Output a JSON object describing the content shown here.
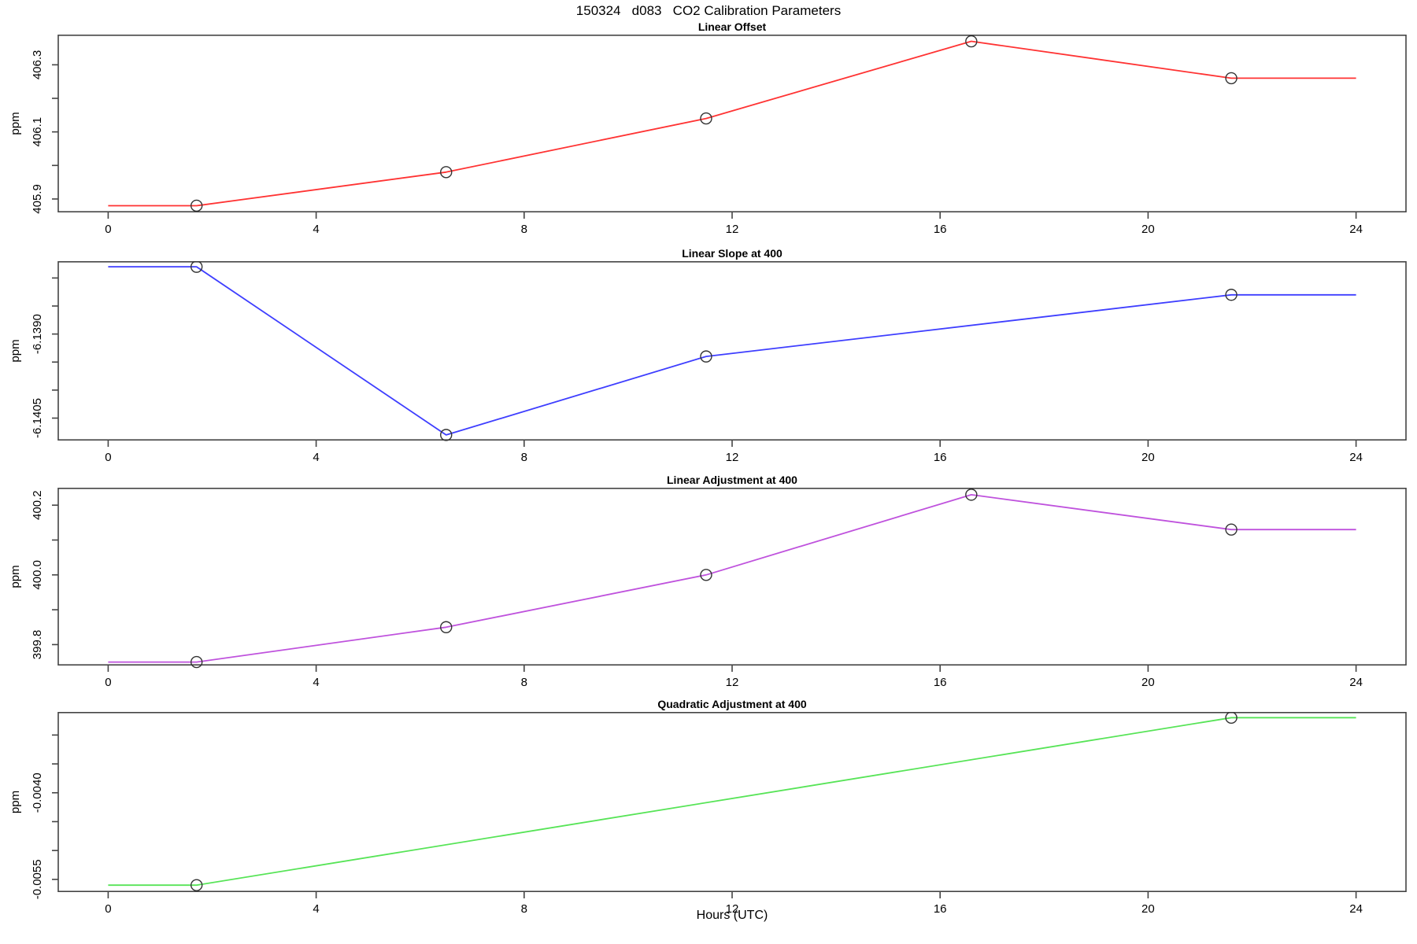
{
  "figure": {
    "title": "150324   d083   CO2 Calibration Parameters",
    "xlabel": "Hours (UTC)"
  },
  "chart_data": [
    {
      "type": "line",
      "title": "Linear Offset",
      "ylabel": "ppm",
      "color": "#ff3333",
      "marker": "open-circle",
      "x": [
        1.7,
        6.5,
        11.5,
        16.6,
        21.6
      ],
      "y": [
        405.88,
        405.98,
        406.14,
        406.37,
        406.26
      ],
      "extrapolated_line": {
        "x": [
          0,
          1.7,
          6.5,
          11.5,
          16.6,
          21.6,
          24
        ],
        "y": [
          405.88,
          405.88,
          405.98,
          406.14,
          406.37,
          406.26,
          406.26
        ]
      },
      "xlim": [
        -0.96,
        24.96
      ],
      "ylim": [
        405.86,
        406.39
      ],
      "xticks": [
        0,
        4,
        8,
        12,
        16,
        20,
        24
      ],
      "yticks": [
        {
          "v": 405.9,
          "label": "405.9"
        },
        {
          "v": 406.0,
          "label": ""
        },
        {
          "v": 406.1,
          "label": "406.1"
        },
        {
          "v": 406.2,
          "label": ""
        },
        {
          "v": 406.3,
          "label": "406.3"
        }
      ],
      "grid": false
    },
    {
      "type": "line",
      "title": "Linear Slope at 400",
      "ylabel": "ppm",
      "color": "#3e3eff",
      "marker": "open-circle",
      "x": [
        1.7,
        6.5,
        11.5,
        21.6
      ],
      "y": [
        -6.1378,
        -6.1408,
        -6.1394,
        -6.1383
      ],
      "extrapolated_line": {
        "x": [
          0,
          1.7,
          6.5,
          11.5,
          21.6,
          24
        ],
        "y": [
          -6.1378,
          -6.1378,
          -6.1408,
          -6.1394,
          -6.1383,
          -6.1383
        ]
      },
      "xlim": [
        -0.96,
        24.96
      ],
      "ylim": [
        -6.1409,
        -6.1377
      ],
      "xticks": [
        0,
        4,
        8,
        12,
        16,
        20,
        24
      ],
      "yticks": [
        {
          "v": -6.1405,
          "label": "-6.1405"
        },
        {
          "v": -6.14,
          "label": ""
        },
        {
          "v": -6.1395,
          "label": ""
        },
        {
          "v": -6.139,
          "label": "-6.1390"
        },
        {
          "v": -6.1385,
          "label": ""
        },
        {
          "v": -6.138,
          "label": ""
        }
      ],
      "grid": false
    },
    {
      "type": "line",
      "title": "Linear Adjustment at 400",
      "ylabel": "ppm",
      "color": "#bf52dd",
      "marker": "open-circle",
      "x": [
        1.7,
        6.5,
        11.5,
        16.6,
        21.6
      ],
      "y": [
        399.75,
        399.85,
        400.0,
        400.23,
        400.13
      ],
      "extrapolated_line": {
        "x": [
          0,
          1.7,
          6.5,
          11.5,
          16.6,
          21.6,
          24
        ],
        "y": [
          399.75,
          399.75,
          399.85,
          400.0,
          400.23,
          400.13,
          400.13
        ]
      },
      "xlim": [
        -0.96,
        24.96
      ],
      "ylim": [
        399.74,
        400.25
      ],
      "xticks": [
        0,
        4,
        8,
        12,
        16,
        20,
        24
      ],
      "yticks": [
        {
          "v": 399.8,
          "label": "399.8"
        },
        {
          "v": 399.9,
          "label": ""
        },
        {
          "v": 400.0,
          "label": "400.0"
        },
        {
          "v": 400.1,
          "label": ""
        },
        {
          "v": 400.2,
          "label": "400.2"
        }
      ],
      "grid": false
    },
    {
      "type": "line",
      "title": "Quadratic Adjustment at 400",
      "ylabel": "ppm",
      "color": "#57e457",
      "marker": "open-circle",
      "x": [
        1.7,
        21.6
      ],
      "y": [
        -0.0056,
        -0.0027
      ],
      "extrapolated_line": {
        "x": [
          0,
          1.7,
          21.6,
          24
        ],
        "y": [
          -0.0056,
          -0.0056,
          -0.0027,
          -0.0027
        ]
      },
      "xlim": [
        -0.96,
        24.96
      ],
      "ylim": [
        -0.00572,
        -0.0026
      ],
      "xticks": [
        0,
        4,
        8,
        12,
        16,
        20,
        24
      ],
      "yticks": [
        {
          "v": -0.0055,
          "label": "-0.0055"
        },
        {
          "v": -0.005,
          "label": ""
        },
        {
          "v": -0.0045,
          "label": ""
        },
        {
          "v": -0.004,
          "label": "-0.0040"
        },
        {
          "v": -0.0035,
          "label": ""
        },
        {
          "v": -0.003,
          "label": ""
        }
      ],
      "grid": false
    }
  ]
}
